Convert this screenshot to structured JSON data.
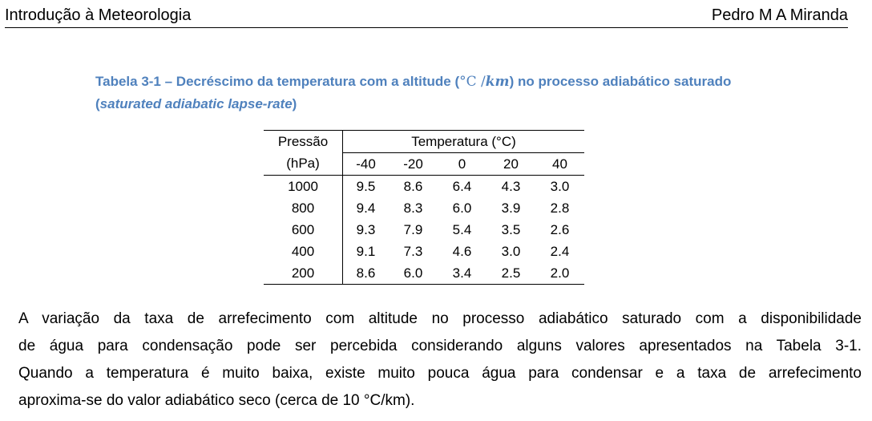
{
  "header": {
    "left": "Introdução à Meteorologia",
    "right": "Pedro M A Miranda"
  },
  "caption": {
    "prefix": "Tabela 3-1 – Decréscimo da temperatura com a altitude (",
    "unit_c": "°C /",
    "unit_km": "km",
    "suffix": ") no processo adiabático saturado",
    "line2_open": "(",
    "line2_italic": "saturated adiabatic lapse-rate",
    "line2_close": ")"
  },
  "table": {
    "pressure_header_1": "Pressão",
    "pressure_header_2": "(hPa)",
    "temperature_header": "Temperatura (°C)",
    "temperatures": [
      "-40",
      "-20",
      "0",
      "20",
      "40"
    ],
    "rows": [
      {
        "pressure": "1000",
        "values": [
          "9.5",
          "8.6",
          "6.4",
          "4.3",
          "3.0"
        ]
      },
      {
        "pressure": "800",
        "values": [
          "9.4",
          "8.3",
          "6.0",
          "3.9",
          "2.8"
        ]
      },
      {
        "pressure": "600",
        "values": [
          "9.3",
          "7.9",
          "5.4",
          "3.5",
          "2.6"
        ]
      },
      {
        "pressure": "400",
        "values": [
          "9.1",
          "7.3",
          "4.6",
          "3.0",
          "2.4"
        ]
      },
      {
        "pressure": "200",
        "values": [
          "8.6",
          "6.0",
          "3.4",
          "2.5",
          "2.0"
        ]
      }
    ]
  },
  "paragraph": {
    "lines": [
      "A variação da taxa de arrefecimento com altitude no processo adiabático saturado com a disponibilidade",
      "de água para condensação pode ser percebida considerando alguns valores apresentados na Tabela 3-1.",
      "Quando a temperatura é muito baixa, existe muito pouca água para condensar e a taxa de arrefecimento",
      "aproxima-se do valor adiabático seco (cerca de 10 °C/km)."
    ]
  },
  "colors": {
    "caption": "#4f81bd",
    "text": "#000000"
  }
}
